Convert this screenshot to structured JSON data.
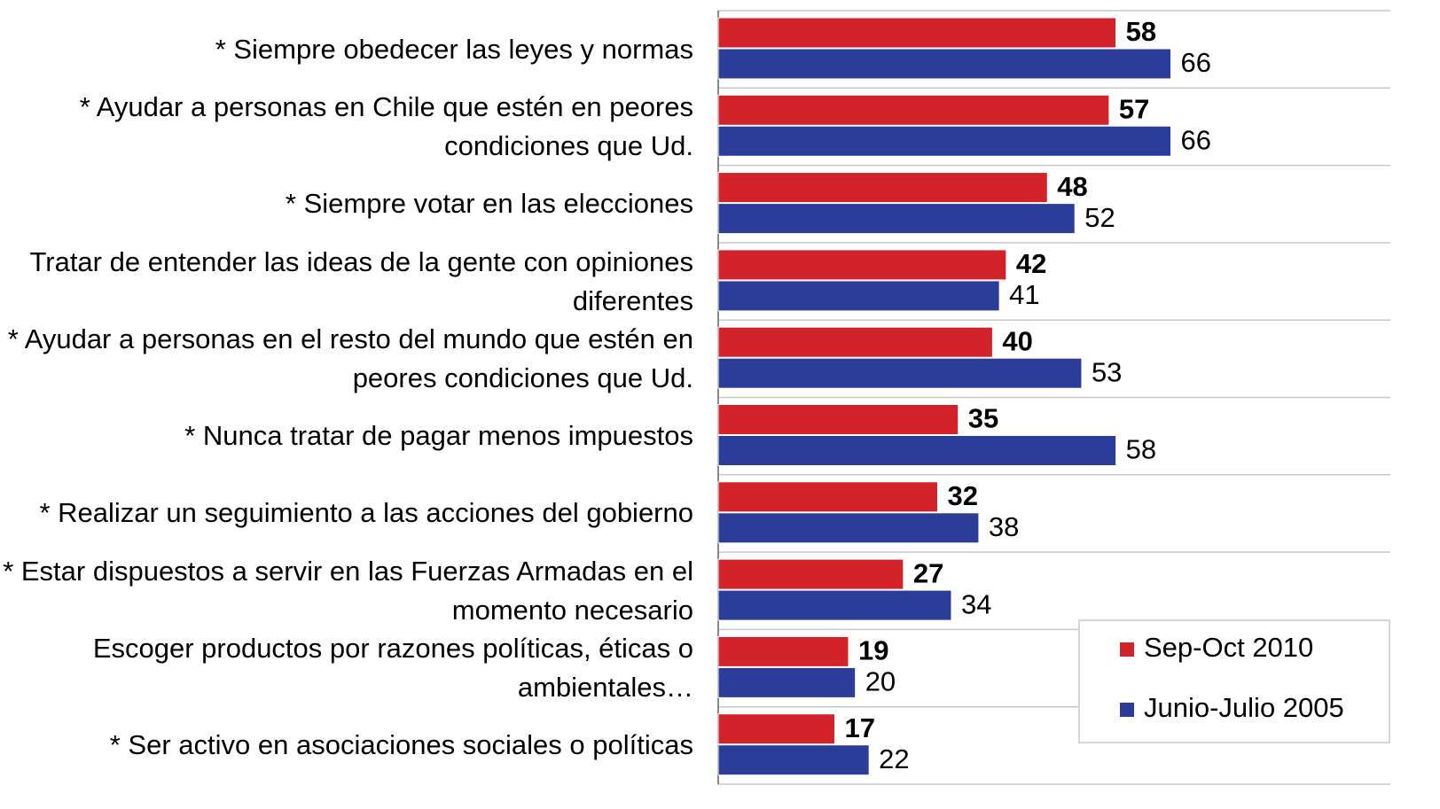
{
  "chart_data": {
    "type": "barh",
    "categories": [
      "* Siempre obedecer las leyes y normas",
      "* Ayudar a personas en Chile que estén en peores condiciones que Ud.",
      "* Siempre votar en las elecciones",
      "Tratar de entender las ideas de la gente con opiniones diferentes",
      "* Ayudar a personas en el resto del mundo que estén en peores condiciones que Ud.",
      "* Nunca tratar de pagar menos impuestos",
      "* Realizar un seguimiento a las acciones del gobierno",
      "* Estar dispuestos a servir en las Fuerzas Armadas en el momento necesario",
      "Escoger productos por razones políticas, éticas o ambientales…",
      "* Ser activo en asociaciones sociales o políticas"
    ],
    "series": [
      {
        "name": "Sep-Oct 2010",
        "color": "#d2232a",
        "values": [
          58,
          57,
          48,
          42,
          40,
          35,
          32,
          27,
          19,
          17
        ]
      },
      {
        "name": "Junio-Julio 2005",
        "color": "#2b3d98",
        "values": [
          66,
          66,
          52,
          41,
          53,
          58,
          38,
          34,
          20,
          22
        ]
      }
    ],
    "xlim": [
      0,
      98
    ]
  }
}
